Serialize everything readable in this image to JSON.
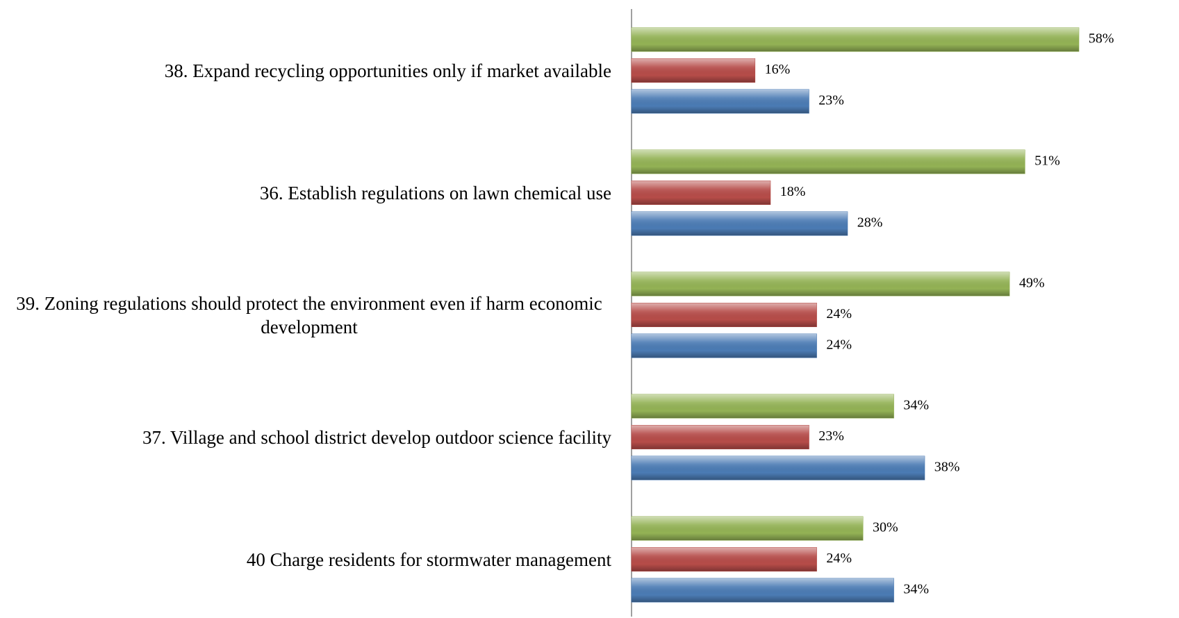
{
  "chart_data": {
    "type": "bar",
    "orientation": "horizontal",
    "categories": [
      "38. Expand recycling opportunities only if market available",
      "36. Establish regulations on lawn chemical use",
      "39. Zoning regulations should protect the environment even if harm economic development",
      "37. Village and school district develop outdoor science facility",
      "40 Charge residents for stormwater management"
    ],
    "series": [
      {
        "color": "#9bbb59",
        "values": [
          58,
          51,
          49,
          34,
          30
        ],
        "value_labels": [
          "58%",
          "51%",
          "49%",
          "34%",
          "30%"
        ]
      },
      {
        "color": "#c0504d",
        "values": [
          16,
          18,
          24,
          23,
          24
        ],
        "value_labels": [
          "16%",
          "18%",
          "24%",
          "23%",
          "24%"
        ]
      },
      {
        "color": "#4f81bd",
        "values": [
          23,
          28,
          24,
          38,
          34
        ],
        "value_labels": [
          "23%",
          "28%",
          "24%",
          "38%",
          "34%"
        ]
      }
    ]
  }
}
